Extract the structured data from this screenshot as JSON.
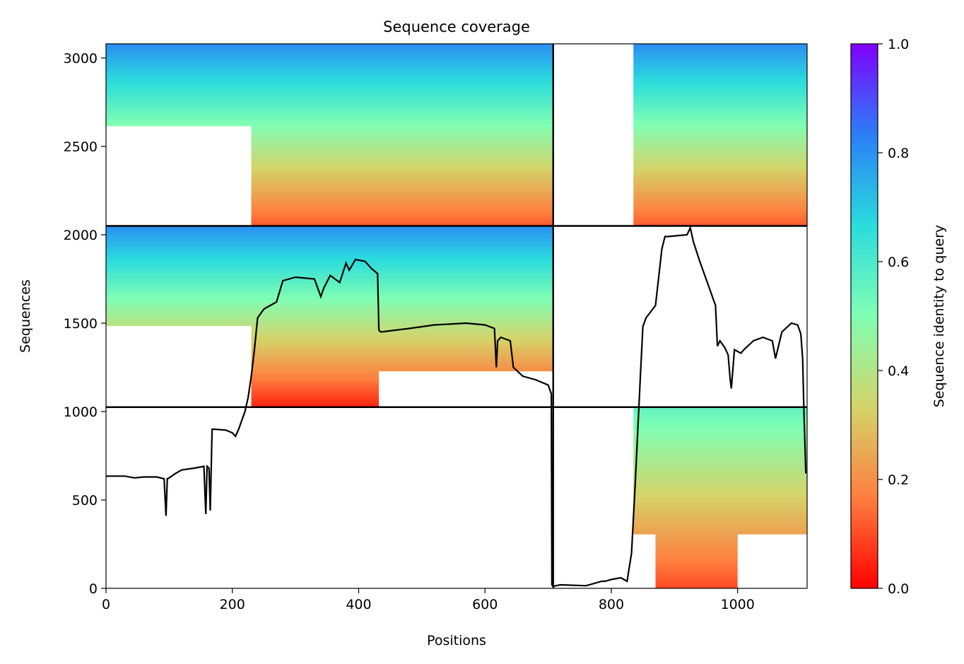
{
  "chart_data": {
    "type": "heatmap",
    "title": "Sequence coverage",
    "xlabel": "Positions",
    "ylabel": "Sequences",
    "xlim": [
      0,
      1110
    ],
    "ylim": [
      0,
      3080
    ],
    "xticks": [
      0,
      200,
      400,
      600,
      800,
      1000
    ],
    "yticks": [
      0,
      500,
      1000,
      1500,
      2000,
      2500,
      3000
    ],
    "grid": false,
    "colorbar": {
      "label": "Sequence identity to query",
      "range": [
        0,
        1
      ],
      "ticks": [
        0.0,
        0.2,
        0.4,
        0.6,
        0.8,
        1.0
      ],
      "tick_labels": [
        "0.0",
        "0.2",
        "0.4",
        "0.6",
        "0.8",
        "1.0"
      ],
      "colormap": "rainbow_r",
      "colors": [
        "#ff0000",
        "#ff7f3f",
        "#d4d46a",
        "#80feb3",
        "#2adcdd",
        "#2b7ff6",
        "#8000ff"
      ]
    },
    "dividers": {
      "x": [
        708
      ],
      "y": [
        1025,
        2050
      ],
      "color": "#000000"
    },
    "blocks": [
      {
        "x": [
          0,
          708
        ],
        "y": [
          2050,
          3080
        ],
        "seq_range": [
          2050,
          3080
        ],
        "identity_range": [
          0.12,
          0.8
        ],
        "covered_from": 0
      },
      {
        "x": [
          708,
          1110
        ],
        "y": [
          2050,
          3080
        ],
        "seq_range": [
          2050,
          3080
        ],
        "identity_range": [
          0.12,
          0.8
        ],
        "covered_from": 835
      },
      {
        "x": [
          0,
          708
        ],
        "y": [
          1025,
          2050
        ],
        "seq_range": [
          1025,
          2050
        ],
        "identity_range": [
          0.05,
          0.8
        ],
        "covered_from": 0
      },
      {
        "x": [
          708,
          1110
        ],
        "y": [
          0,
          1025
        ],
        "seq_range": [
          0,
          1025
        ],
        "identity_range": [
          0.1,
          0.55
        ],
        "covered_from": 835
      }
    ],
    "coverage_line": {
      "color": "#000000",
      "x": [
        0,
        30,
        45,
        60,
        80,
        92,
        95,
        97,
        100,
        110,
        120,
        140,
        155,
        158,
        160,
        163,
        165,
        168,
        172,
        190,
        200,
        205,
        210,
        215,
        220,
        225,
        230,
        235,
        240,
        250,
        270,
        280,
        300,
        330,
        340,
        345,
        355,
        370,
        380,
        385,
        395,
        410,
        420,
        430,
        432,
        435,
        480,
        520,
        570,
        600,
        615,
        618,
        620,
        625,
        640,
        645,
        660,
        680,
        700,
        705,
        706,
        708,
        712,
        720,
        760,
        785,
        790,
        800,
        815,
        825,
        832,
        838,
        842,
        846,
        850,
        855,
        870,
        880,
        885,
        890,
        920,
        925,
        930,
        940,
        955,
        965,
        968,
        972,
        980,
        985,
        988,
        990,
        995,
        1005,
        1010,
        1025,
        1040,
        1055,
        1060,
        1070,
        1085,
        1095,
        1100,
        1103,
        1105,
        1108
      ],
      "y": [
        635,
        635,
        625,
        630,
        630,
        620,
        410,
        620,
        625,
        650,
        670,
        680,
        690,
        420,
        690,
        680,
        440,
        900,
        900,
        895,
        880,
        860,
        900,
        950,
        1000,
        1080,
        1200,
        1350,
        1530,
        1580,
        1620,
        1740,
        1760,
        1750,
        1650,
        1700,
        1770,
        1730,
        1840,
        1800,
        1860,
        1850,
        1810,
        1780,
        1460,
        1450,
        1470,
        1490,
        1500,
        1490,
        1470,
        1250,
        1400,
        1420,
        1400,
        1250,
        1200,
        1180,
        1150,
        1100,
        20,
        10,
        15,
        20,
        15,
        40,
        40,
        50,
        60,
        40,
        200,
        600,
        900,
        1200,
        1480,
        1530,
        1600,
        1920,
        1990,
        1990,
        2000,
        2040,
        1960,
        1850,
        1700,
        1600,
        1370,
        1400,
        1360,
        1320,
        1190,
        1130,
        1350,
        1330,
        1350,
        1400,
        1420,
        1400,
        1300,
        1450,
        1500,
        1490,
        1440,
        1300,
        1000,
        650
      ]
    }
  }
}
